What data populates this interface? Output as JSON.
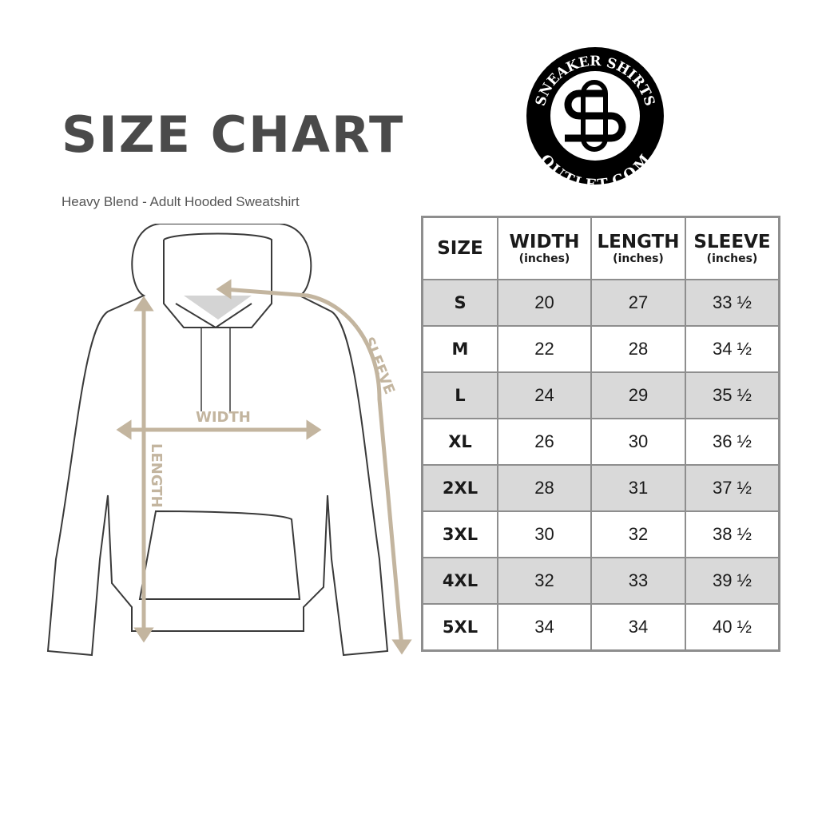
{
  "title": "SIZE CHART",
  "subtitle": "Heavy Blend - Adult Hooded Sweatshirt",
  "logo": {
    "top_text": "SNEAKER SHIRTS",
    "bottom_text": "OUTLET.COM",
    "monogram": "SS"
  },
  "diagram": {
    "width_label": "WIDTH",
    "length_label": "LENGTH",
    "sleeve_label": "SLEEVE",
    "measure_color": "#c3b59f"
  },
  "table": {
    "headers": [
      {
        "label": "SIZE",
        "unit": ""
      },
      {
        "label": "WIDTH",
        "unit": "(inches)"
      },
      {
        "label": "LENGTH",
        "unit": "(inches)"
      },
      {
        "label": "SLEEVE",
        "unit": "(inches)"
      }
    ],
    "rows": [
      [
        "S",
        "20",
        "27",
        "33 ½"
      ],
      [
        "M",
        "22",
        "28",
        "34 ½"
      ],
      [
        "L",
        "24",
        "29",
        "35 ½"
      ],
      [
        "XL",
        "26",
        "30",
        "36 ½"
      ],
      [
        "2XL",
        "28",
        "31",
        "37 ½"
      ],
      [
        "3XL",
        "30",
        "32",
        "38 ½"
      ],
      [
        "4XL",
        "32",
        "33",
        "39 ½"
      ],
      [
        "5XL",
        "34",
        "34",
        "40 ½"
      ]
    ],
    "shade_color": "#d9d9d9"
  }
}
